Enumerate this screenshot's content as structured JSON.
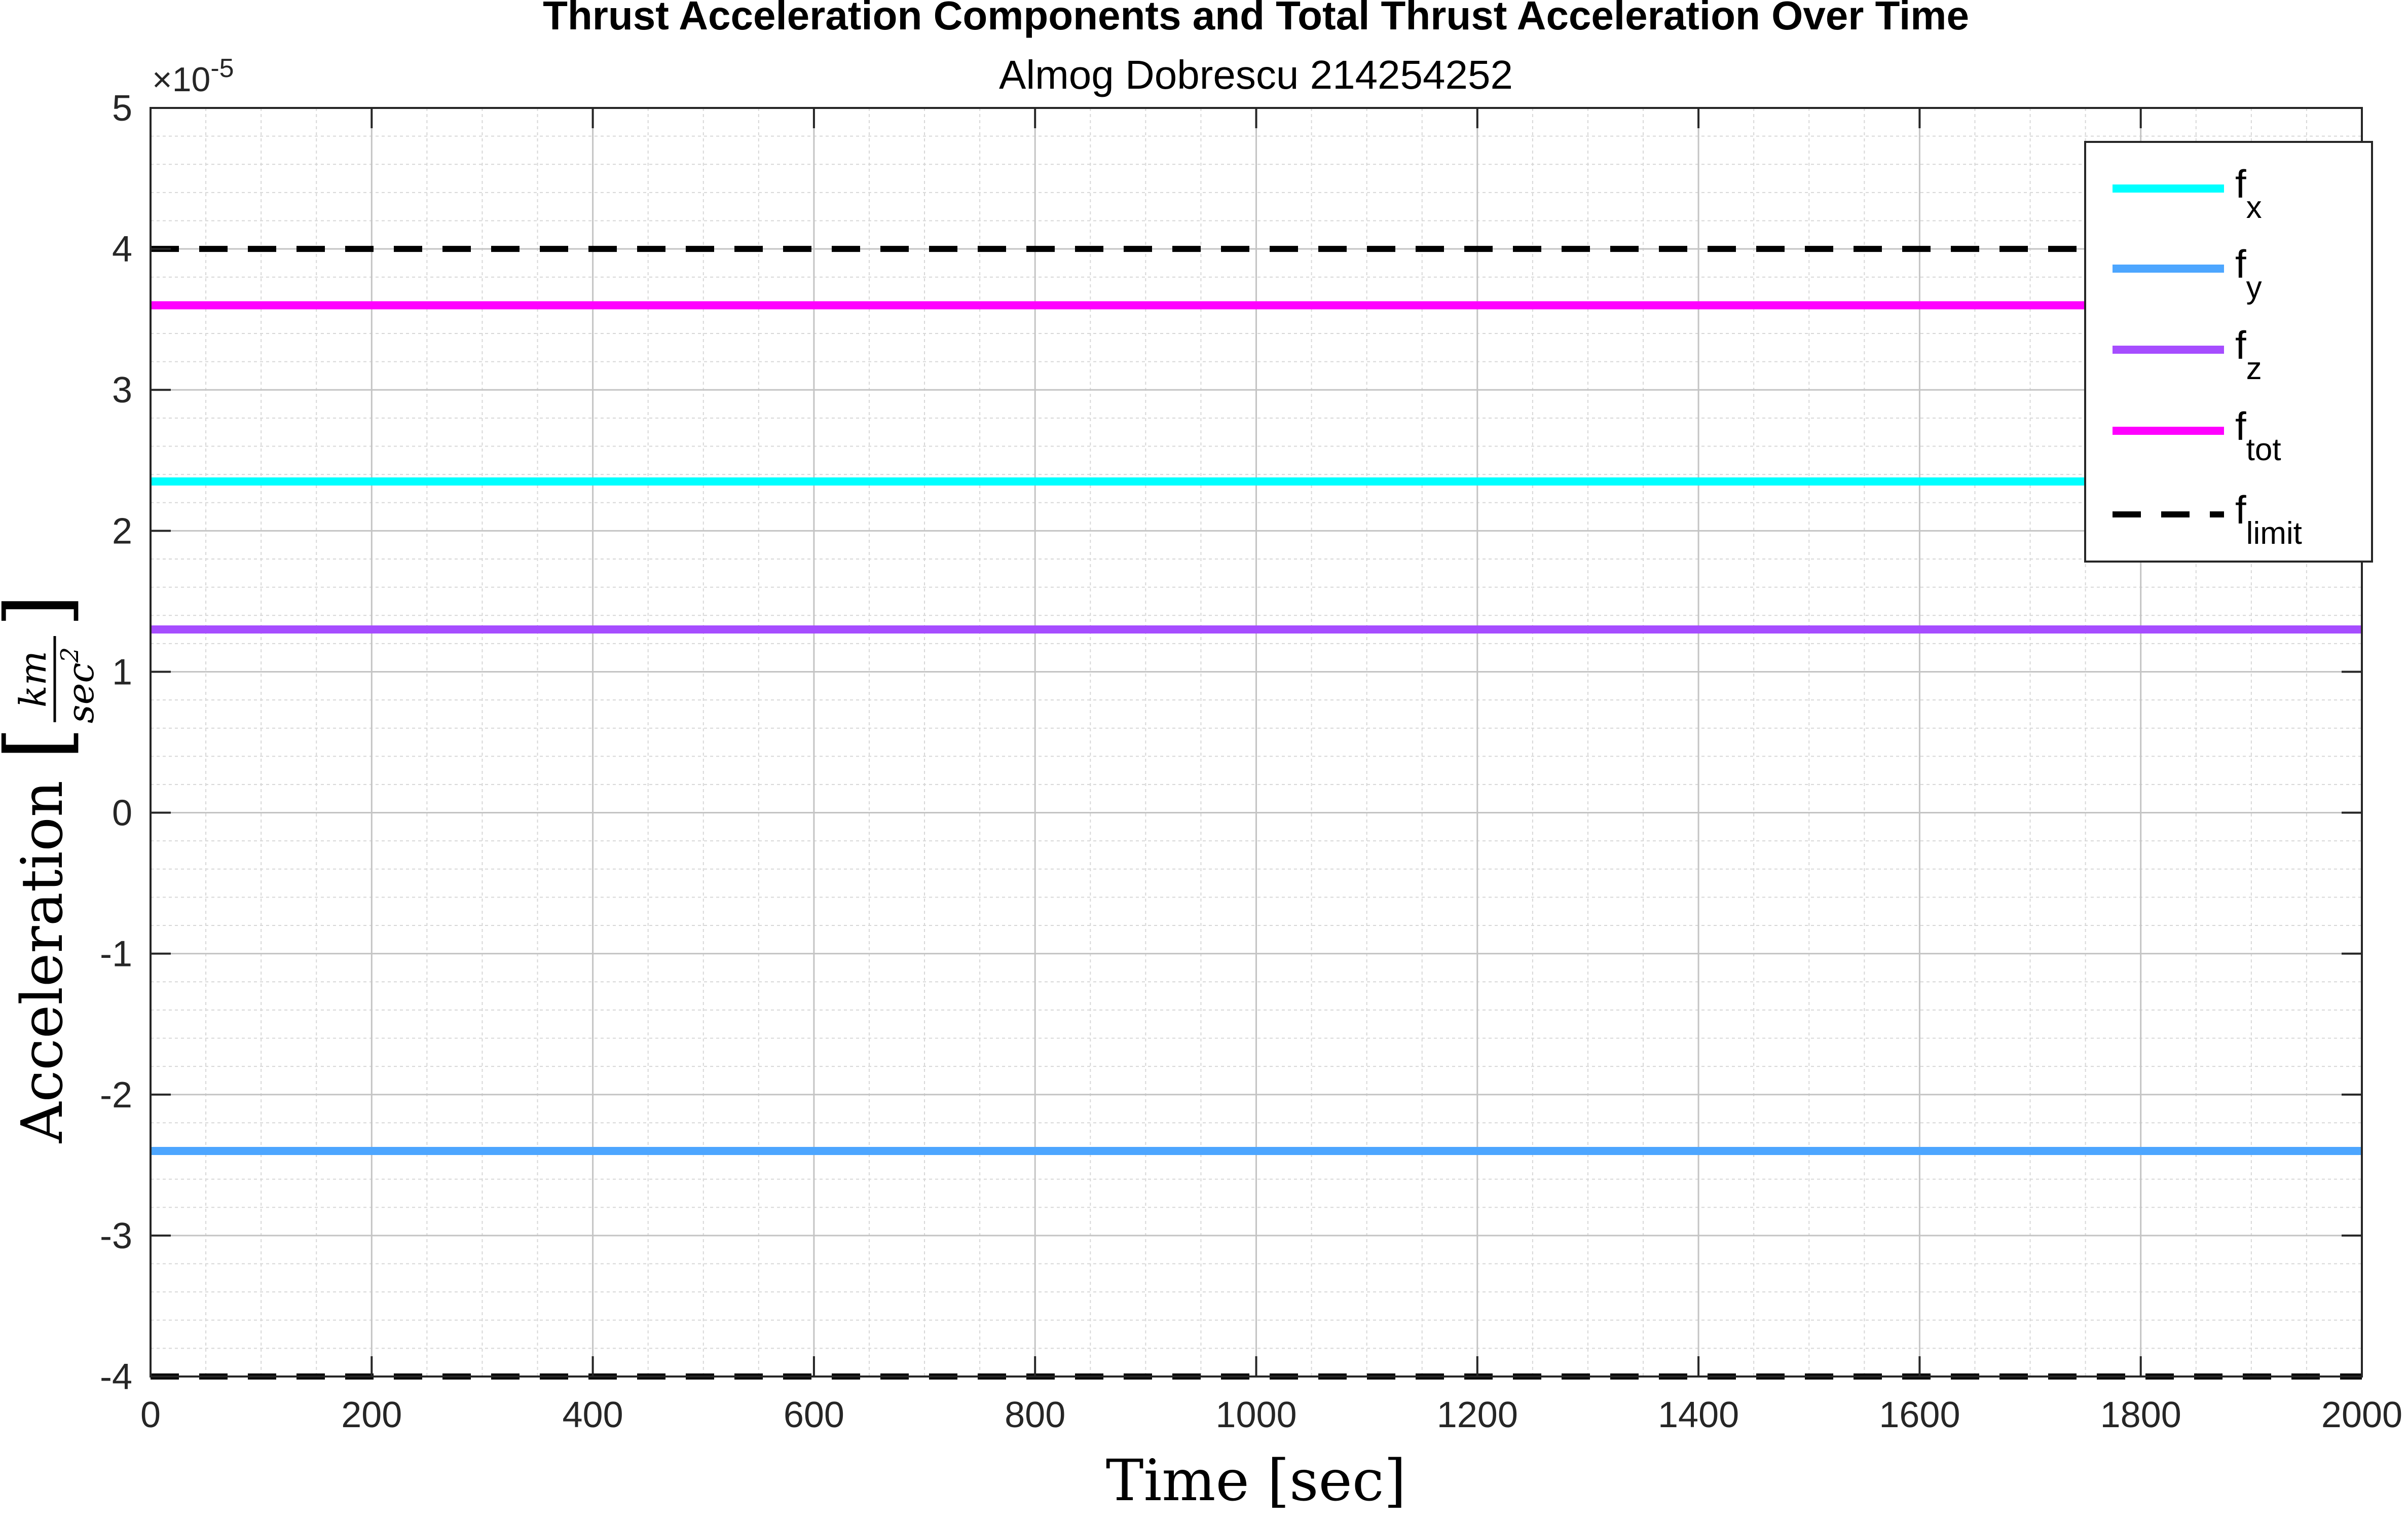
{
  "chart_data": {
    "type": "line",
    "title": "Thrust Acceleration Components and Total Thrust Acceleration Over Time",
    "subtitle": "Almog Dobrescu 214254252",
    "xlabel": "Time [sec]",
    "ylabel": "Acceleration",
    "ylabel_unit_num": "km",
    "ylabel_unit_den": "sec",
    "ylabel_unit_den_exp": "2",
    "y_exponent_base": "×10",
    "y_exponent_power": "-5",
    "xlim": [
      0,
      2000
    ],
    "ylim": [
      -4,
      5
    ],
    "xticks": [
      0,
      200,
      400,
      600,
      800,
      1000,
      1200,
      1400,
      1600,
      1800,
      2000
    ],
    "yticks": [
      -4,
      -3,
      -2,
      -1,
      0,
      1,
      2,
      3,
      4,
      5
    ],
    "grid": true,
    "minor_grid": true,
    "legend_position": "top-right",
    "series": [
      {
        "name": "f",
        "sub": "x",
        "color": "#00FFFF",
        "style": "solid",
        "x": [
          0,
          2000
        ],
        "y": [
          2.35,
          2.35
        ]
      },
      {
        "name": "f",
        "sub": "y",
        "color": "#4DA6FF",
        "style": "solid",
        "x": [
          0,
          2000
        ],
        "y": [
          -2.4,
          -2.4
        ]
      },
      {
        "name": "f",
        "sub": "z",
        "color": "#A64DFF",
        "style": "solid",
        "x": [
          0,
          2000
        ],
        "y": [
          1.3,
          1.3
        ]
      },
      {
        "name": "f",
        "sub": "tot",
        "color": "#FF00FF",
        "style": "solid",
        "x": [
          0,
          2000
        ],
        "y": [
          3.6,
          3.6
        ]
      },
      {
        "name": "f",
        "sub": "limit",
        "color": "#000000",
        "style": "dashed",
        "x": [
          0,
          2000
        ],
        "y": [
          4,
          4
        ],
        "mirror_y": [
          -4,
          -4
        ]
      }
    ]
  }
}
